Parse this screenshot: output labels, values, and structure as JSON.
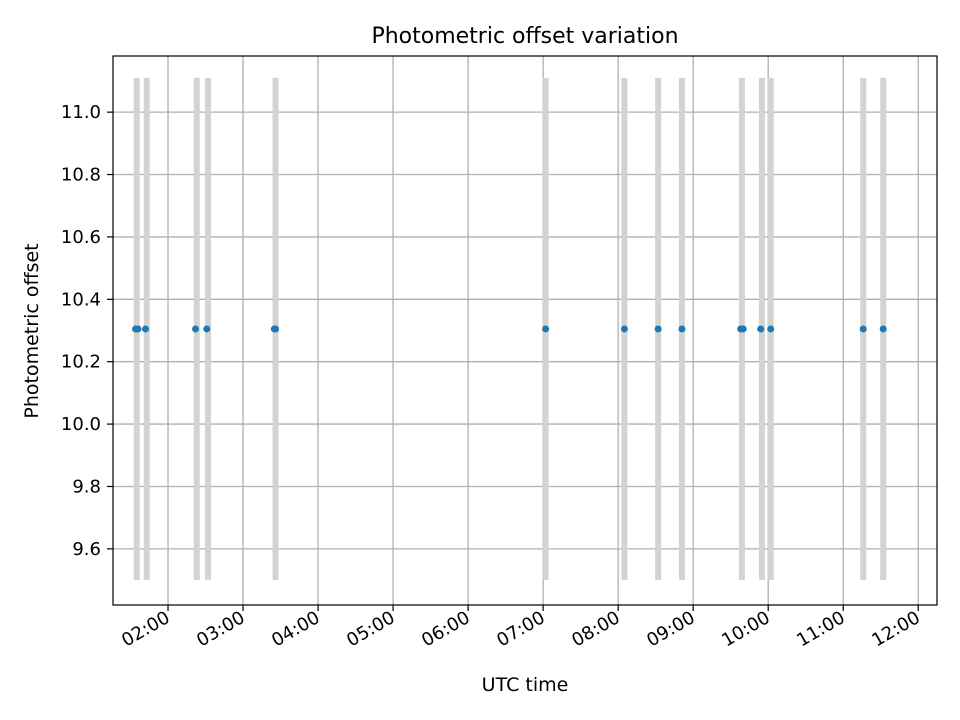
{
  "chart_data": {
    "type": "scatter",
    "title": "Photometric offset variation",
    "xlabel": "UTC time",
    "ylabel": "Photometric offset",
    "grid": true,
    "xlim": [
      "01:16",
      "12:15"
    ],
    "ylim": [
      9.42,
      11.18
    ],
    "x_ticks": [
      "02:00",
      "03:00",
      "04:00",
      "05:00",
      "06:00",
      "07:00",
      "08:00",
      "09:00",
      "10:00",
      "11:00",
      "12:00"
    ],
    "y_ticks": [
      "9.6",
      "9.8",
      "10.0",
      "10.2",
      "10.4",
      "10.6",
      "10.8",
      "11.0"
    ],
    "y_tick_values": [
      9.6,
      9.8,
      10.0,
      10.2,
      10.4,
      10.6,
      10.8,
      11.0
    ],
    "span_range": [
      9.5,
      11.11
    ],
    "spans": [
      "01:35",
      "01:43",
      "02:23",
      "02:32",
      "03:26",
      "07:02",
      "08:05",
      "08:32",
      "08:51",
      "09:39",
      "09:55",
      "10:02",
      "11:16",
      "11:32"
    ],
    "points": [
      {
        "x": "01:34",
        "y": 10.305
      },
      {
        "x": "01:36",
        "y": 10.305
      },
      {
        "x": "01:42",
        "y": 10.305
      },
      {
        "x": "02:22",
        "y": 10.305
      },
      {
        "x": "02:31",
        "y": 10.305
      },
      {
        "x": "03:25",
        "y": 10.305
      },
      {
        "x": "03:26",
        "y": 10.305
      },
      {
        "x": "07:02",
        "y": 10.305
      },
      {
        "x": "08:05",
        "y": 10.305
      },
      {
        "x": "08:32",
        "y": 10.305
      },
      {
        "x": "08:51",
        "y": 10.305
      },
      {
        "x": "09:38",
        "y": 10.305
      },
      {
        "x": "09:40",
        "y": 10.305
      },
      {
        "x": "09:54",
        "y": 10.305
      },
      {
        "x": "10:02",
        "y": 10.305
      },
      {
        "x": "11:16",
        "y": 10.305
      },
      {
        "x": "11:32",
        "y": 10.305
      }
    ],
    "colors": {
      "points": "#1f77b4",
      "spans": "#d3d3d3",
      "grid": "#b0b0b0",
      "axes": "#000000"
    }
  }
}
